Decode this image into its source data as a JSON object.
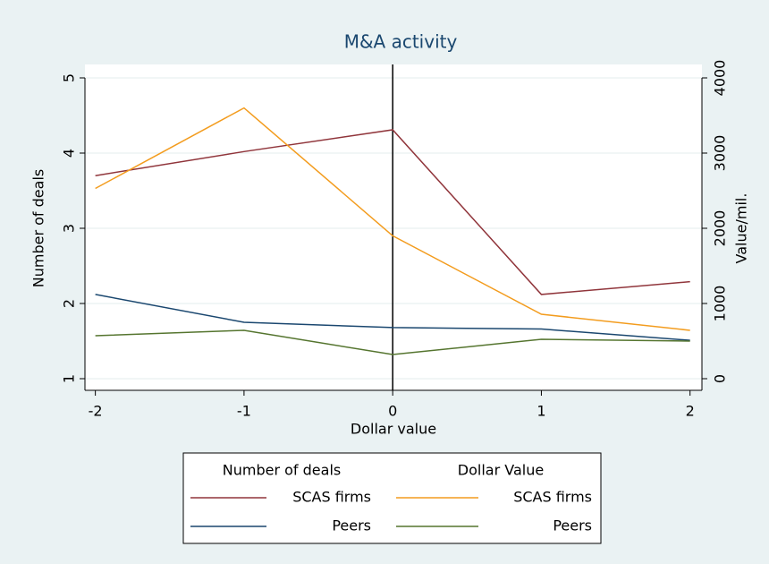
{
  "chart_data": {
    "type": "line",
    "title": "M&A activity",
    "x_label": "Dollar value",
    "y_label": "Number of deals",
    "y2_label": "Value/mil.",
    "x": [
      -2,
      -1,
      0,
      1,
      2
    ],
    "xlim": [
      -2.07,
      2.08
    ],
    "xticks": [
      -2,
      -1,
      0,
      1,
      2
    ],
    "ylim": [
      1,
      5
    ],
    "yticks": [
      1,
      2,
      3,
      4,
      5
    ],
    "y2lim": [
      0,
      4000
    ],
    "y2ticks": [
      0,
      1000,
      2000,
      3000,
      4000
    ],
    "grid": true,
    "vline": 0,
    "legend_titles": [
      "Number of deals",
      "Dollar Value"
    ],
    "series": [
      {
        "name": "SCAS firms",
        "color": "#90353b",
        "values": [
          3.7,
          4.02,
          4.31,
          2.12,
          2.29
        ]
      },
      {
        "name": "Peers",
        "color": "#1a476f",
        "values": [
          2.12,
          1.75,
          1.68,
          1.66,
          1.51
        ]
      },
      {
        "name": "SCAS firms",
        "color": "#f39c1e",
        "axis": "y2",
        "values": [
          2530,
          3600,
          1900,
          857,
          643
        ]
      },
      {
        "name": "Peers",
        "color": "#55752f",
        "axis": "y2",
        "values": [
          571,
          643,
          321,
          524,
          500
        ]
      }
    ]
  }
}
